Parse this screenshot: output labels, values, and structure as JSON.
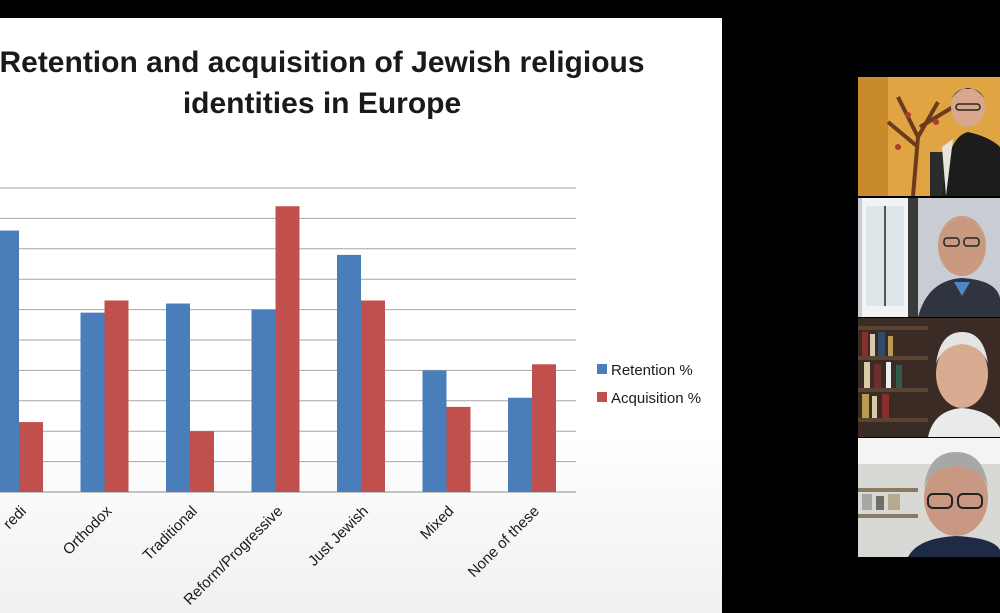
{
  "meeting": {
    "participants": [
      {
        "tile": "participant-1",
        "description": "woman with glasses in front of tree mural"
      },
      {
        "tile": "participant-2",
        "description": "man with glasses by window"
      },
      {
        "tile": "participant-3",
        "description": "grey-haired man with bookshelves"
      },
      {
        "tile": "participant-4",
        "description": "man with glasses in office"
      }
    ]
  },
  "slide": {
    "title_line1": "Retention and acquisition of Jewish religious",
    "title_line2": "identities in Europe"
  },
  "chart_data": {
    "type": "bar",
    "title": "Retention and acquisition of Jewish religious identities in Europe",
    "categories": [
      "Haredi",
      "Orthodox",
      "Traditional",
      "Reform/Progressive",
      "Just Jewish",
      "Mixed",
      "None of these"
    ],
    "visible_category_text": [
      "redi",
      "Orthodox",
      "Traditional",
      "Reform/Progressive",
      "Just Jewish",
      "Mixed",
      "None of these"
    ],
    "ylim": [
      0,
      100
    ],
    "gridlines": true,
    "legend_position": "right",
    "series": [
      {
        "name": "Retention %",
        "color": "#4a7ebb",
        "values": [
          86,
          59,
          62,
          60,
          78,
          40,
          31
        ]
      },
      {
        "name": "Acquisition %",
        "color": "#c0504d",
        "values": [
          23,
          63,
          20,
          94,
          63,
          28,
          42
        ]
      }
    ]
  }
}
